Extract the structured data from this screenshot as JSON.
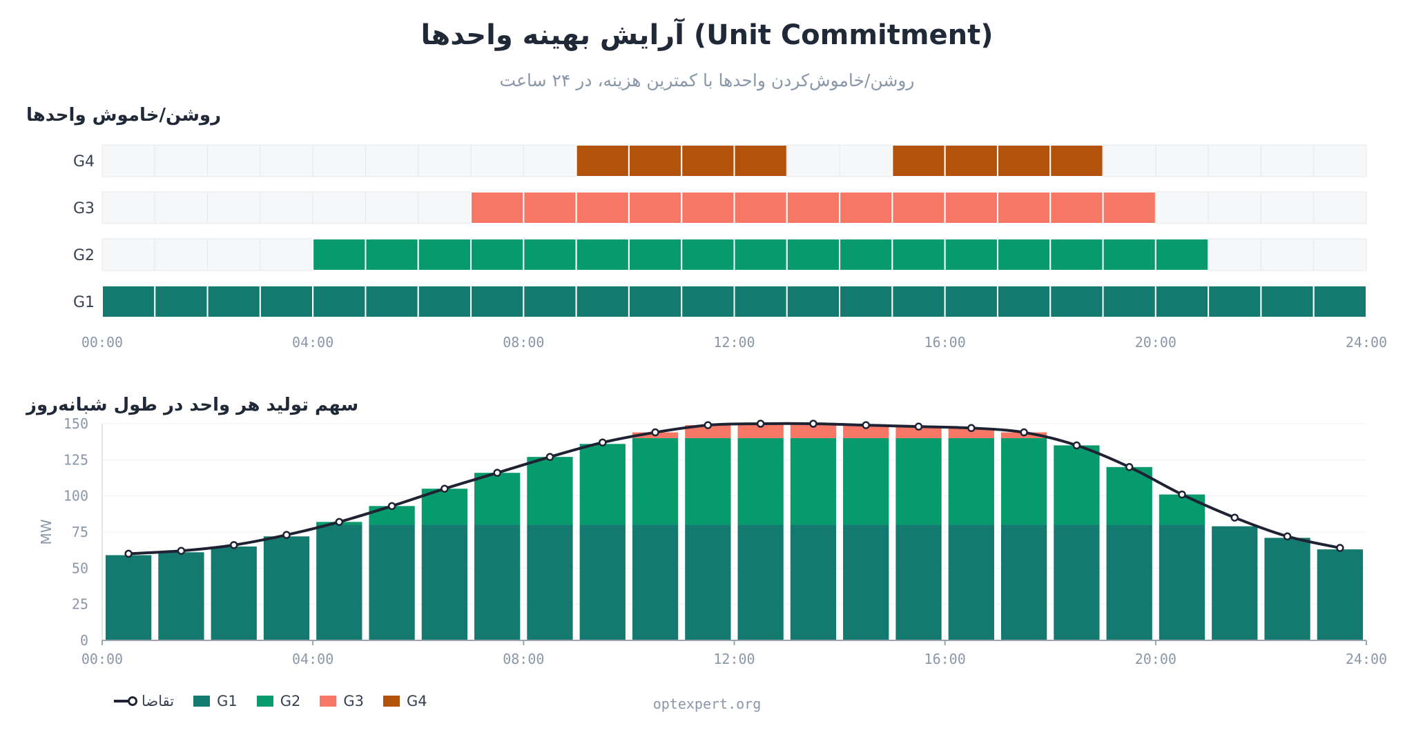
{
  "title": "آرایش بهینه واحدها (Unit Commitment)",
  "subtitle": "روشن/خاموش‌کردن واحدها با کمترین هزینه، در ۲۴ ساعت",
  "section1_title": "روشن/خاموش واحدها",
  "section2_title": "سهم تولید هر واحد در طول شبانه‌روز",
  "footer": "optexpert.org",
  "colors": {
    "G1": "#147a6f",
    "G2": "#079a6c",
    "G3": "#f77767",
    "G4": "#b3530b",
    "demand": "#1f2233",
    "off": "#f6f7f9"
  },
  "legend": [
    {
      "key": "demand",
      "label": "تقاضا",
      "kind": "line"
    },
    {
      "key": "G1",
      "label": "G1",
      "kind": "box"
    },
    {
      "key": "G2",
      "label": "G2",
      "kind": "box"
    },
    {
      "key": "G3",
      "label": "G3",
      "kind": "box"
    },
    {
      "key": "G4",
      "label": "G4",
      "kind": "box"
    }
  ],
  "chart_data": [
    {
      "type": "heatmap",
      "x_tick_labels": [
        "00:00",
        "04:00",
        "08:00",
        "12:00",
        "16:00",
        "20:00",
        "24:00"
      ],
      "units": [
        "G4",
        "G3",
        "G2",
        "G1"
      ],
      "hours": 24,
      "status": {
        "G1": [
          1,
          1,
          1,
          1,
          1,
          1,
          1,
          1,
          1,
          1,
          1,
          1,
          1,
          1,
          1,
          1,
          1,
          1,
          1,
          1,
          1,
          1,
          1,
          1
        ],
        "G2": [
          0,
          0,
          0,
          0,
          1,
          1,
          1,
          1,
          1,
          1,
          1,
          1,
          1,
          1,
          1,
          1,
          1,
          1,
          1,
          1,
          1,
          0,
          0,
          0
        ],
        "G3": [
          0,
          0,
          0,
          0,
          0,
          0,
          0,
          1,
          1,
          1,
          1,
          1,
          1,
          1,
          1,
          1,
          1,
          1,
          1,
          1,
          0,
          0,
          0,
          0
        ],
        "G4": [
          0,
          0,
          0,
          0,
          0,
          0,
          0,
          0,
          0,
          1,
          1,
          1,
          1,
          0,
          0,
          1,
          1,
          1,
          1,
          0,
          0,
          0,
          0,
          0
        ]
      }
    },
    {
      "type": "bar",
      "stacked": true,
      "x_tick_labels": [
        "00:00",
        "04:00",
        "08:00",
        "12:00",
        "16:00",
        "20:00",
        "24:00"
      ],
      "ylabel": "MW",
      "ylim": [
        0,
        150
      ],
      "y_ticks": [
        0,
        25,
        50,
        75,
        100,
        125,
        150
      ],
      "series": [
        {
          "name": "G1",
          "values": [
            59,
            61,
            65,
            72,
            80,
            80,
            80,
            80,
            80,
            80,
            80,
            80,
            80,
            80,
            80,
            80,
            80,
            80,
            80,
            80,
            80,
            79,
            71,
            63
          ]
        },
        {
          "name": "G2",
          "values": [
            0,
            0,
            0,
            0,
            2,
            13,
            25,
            36,
            47,
            56,
            60,
            60,
            60,
            60,
            60,
            60,
            60,
            60,
            55,
            40,
            21,
            0,
            0,
            0
          ]
        },
        {
          "name": "G3",
          "values": [
            0,
            0,
            0,
            0,
            0,
            0,
            0,
            0,
            0,
            0,
            4,
            9,
            10,
            10,
            9,
            8,
            7,
            4,
            0,
            0,
            0,
            0,
            0,
            0
          ]
        },
        {
          "name": "G4",
          "values": [
            0,
            0,
            0,
            0,
            0,
            0,
            0,
            0,
            0,
            0,
            0,
            0,
            0,
            0,
            0,
            0,
            0,
            0,
            0,
            0,
            0,
            0,
            0,
            0
          ]
        }
      ],
      "demand": {
        "name": "تقاضا",
        "values": [
          60,
          62,
          66,
          73,
          82,
          93,
          105,
          116,
          127,
          137,
          144,
          149,
          150,
          150,
          149,
          148,
          147,
          144,
          135,
          120,
          101,
          85,
          72,
          64
        ]
      }
    }
  ]
}
